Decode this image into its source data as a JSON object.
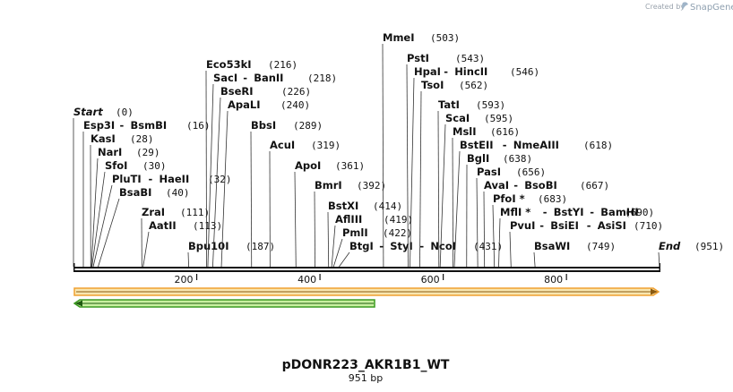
{
  "credit": {
    "prefix": "Created by",
    "brand": "SnapGene"
  },
  "map": {
    "name": "pDONR223_AKR1B1_WT",
    "length_label": "951 bp",
    "length": 951,
    "scale_ticks": [
      "200",
      "400",
      "600",
      "800"
    ],
    "colors": {
      "feature_orange": "#f0a030",
      "feature_orange_fill": "#f8e6b0",
      "feature_green": "#3a9a20",
      "feature_green_fill": "#c8f0a0"
    },
    "sites": [
      {
        "names": [
          "Start"
        ],
        "pos": "(0)",
        "at": 0,
        "italic": true
      },
      {
        "names": [
          "Esp3I",
          "BsmBI"
        ],
        "pos": "(16)",
        "at": 16
      },
      {
        "names": [
          "KasI"
        ],
        "pos": "(28)",
        "at": 28
      },
      {
        "names": [
          "NarI"
        ],
        "pos": "(29)",
        "at": 29
      },
      {
        "names": [
          "SfoI"
        ],
        "pos": "(30)",
        "at": 30
      },
      {
        "names": [
          "PluTI",
          "HaeII"
        ],
        "pos": "(32)",
        "at": 32
      },
      {
        "names": [
          "BsaBI"
        ],
        "pos": "(40)",
        "at": 40
      },
      {
        "names": [
          "ZraI"
        ],
        "pos": "(111)",
        "at": 111
      },
      {
        "names": [
          "AatII"
        ],
        "pos": "(113)",
        "at": 113
      },
      {
        "names": [
          "Bpu10I"
        ],
        "pos": "(187)",
        "at": 187
      },
      {
        "names": [
          "Eco53kI"
        ],
        "pos": "(216)",
        "at": 216
      },
      {
        "names": [
          "SacI",
          "BanII"
        ],
        "pos": "(218)",
        "at": 218
      },
      {
        "names": [
          "BseRI"
        ],
        "pos": "(226)",
        "at": 226
      },
      {
        "names": [
          "ApaLI"
        ],
        "pos": "(240)",
        "at": 240
      },
      {
        "names": [
          "BbsI"
        ],
        "pos": "(289)",
        "at": 289
      },
      {
        "names": [
          "AcuI"
        ],
        "pos": "(319)",
        "at": 319
      },
      {
        "names": [
          "ApoI"
        ],
        "pos": "(361)",
        "at": 361
      },
      {
        "names": [
          "BmrI"
        ],
        "pos": "(392)",
        "at": 392
      },
      {
        "names": [
          "BstXI"
        ],
        "pos": "(414)",
        "at": 414
      },
      {
        "names": [
          "AflIII"
        ],
        "pos": "(419)",
        "at": 419
      },
      {
        "names": [
          "PmlI"
        ],
        "pos": "(422)",
        "at": 422
      },
      {
        "names": [
          "BtgI",
          "StyI",
          "NcoI"
        ],
        "pos": "(431)",
        "at": 431
      },
      {
        "names": [
          "MmeI"
        ],
        "pos": "(503)",
        "at": 503
      },
      {
        "names": [
          "PstI"
        ],
        "pos": "(543)",
        "at": 543
      },
      {
        "names": [
          "HpaI",
          "HincII"
        ],
        "pos": "(546)",
        "at": 546
      },
      {
        "names": [
          "TsoI"
        ],
        "pos": "(562)",
        "at": 562
      },
      {
        "names": [
          "TatI"
        ],
        "pos": "(593)",
        "at": 593
      },
      {
        "names": [
          "ScaI"
        ],
        "pos": "(595)",
        "at": 595
      },
      {
        "names": [
          "MslI"
        ],
        "pos": "(616)",
        "at": 616
      },
      {
        "names": [
          "BstEII",
          "NmeAIII"
        ],
        "pos": "(618)",
        "at": 618
      },
      {
        "names": [
          "BglI"
        ],
        "pos": "(638)",
        "at": 638
      },
      {
        "names": [
          "PasI"
        ],
        "pos": "(656)",
        "at": 656
      },
      {
        "names": [
          "AvaI",
          "BsoBI"
        ],
        "pos": "(667)",
        "at": 667
      },
      {
        "names": [
          "PfoI *"
        ],
        "pos": "(683)",
        "at": 683
      },
      {
        "names": [
          "MflI *",
          "BstYI",
          "BamHI"
        ],
        "pos": "(690)",
        "at": 690
      },
      {
        "names": [
          "PvuI",
          "BsiEI",
          "AsiSI"
        ],
        "pos": "(710)",
        "at": 710
      },
      {
        "names": [
          "BsaWI"
        ],
        "pos": "(749)",
        "at": 749
      },
      {
        "names": [
          "End"
        ],
        "pos": "(951)",
        "at": 951,
        "italic": true
      }
    ]
  }
}
